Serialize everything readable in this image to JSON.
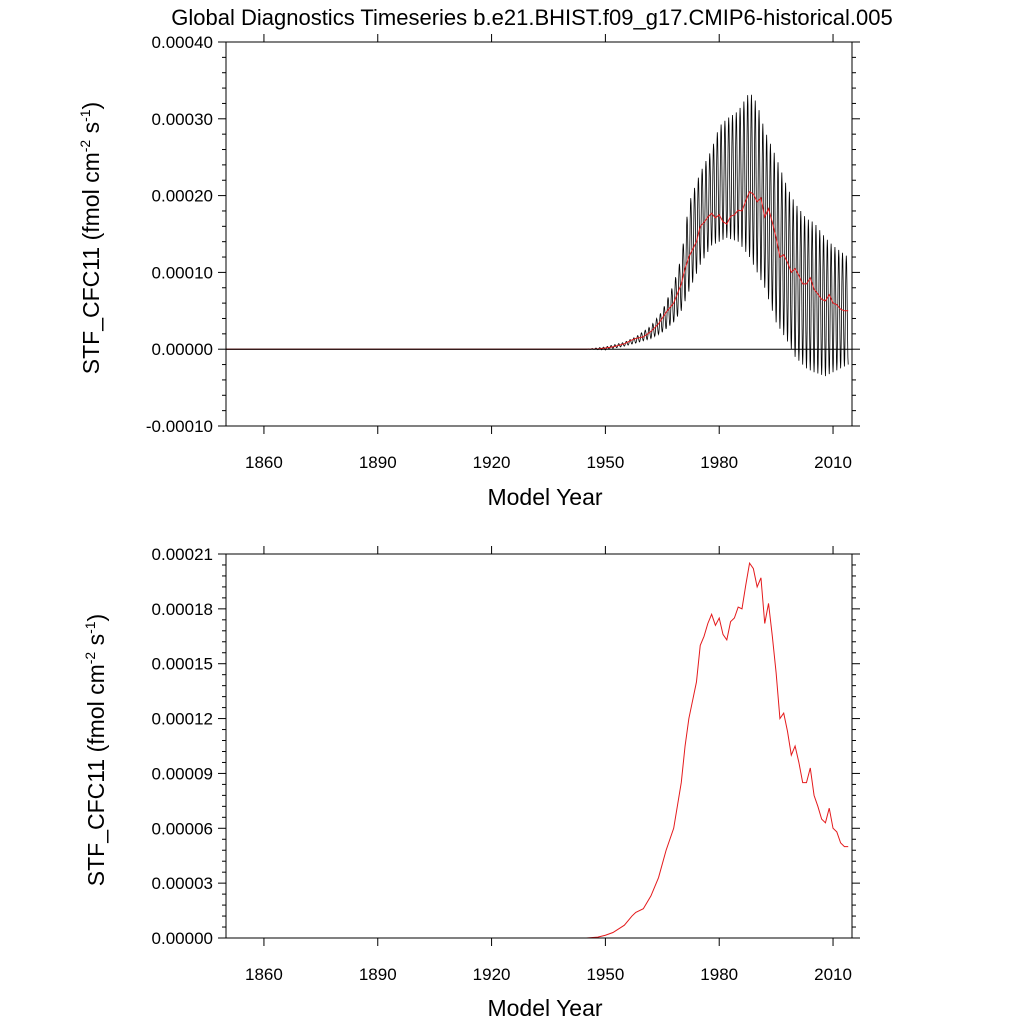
{
  "title": "Global Diagnostics Timeseries b.e21.BHIST.f09_g17.CMIP6-historical.005",
  "colors": {
    "monthly": "#000000",
    "annual": "#e41a1c",
    "zero_line": "#000000"
  },
  "chart_data": [
    {
      "type": "line",
      "xlabel": "Model Year",
      "ylabel": "STF_CFC11 (fmol cm",
      "ylabel_sup1": "-2",
      "ylabel_mid": " s",
      "ylabel_sup2": "-1",
      "ylabel_end": ")",
      "xlim": [
        1850,
        2015
      ],
      "ylim": [
        -0.0001,
        0.0004
      ],
      "x_ticks": [
        1860,
        1890,
        1920,
        1950,
        1980,
        2010
      ],
      "y_ticks": [
        "-0.00010",
        "0.00000",
        "0.00010",
        "0.00020",
        "0.00030",
        "0.00040"
      ],
      "zero_line": true,
      "series": [
        {
          "kind": "monthly",
          "x": [
            1850,
            1945,
            1950,
            1955,
            1958,
            1960,
            1962,
            1965,
            1968,
            1970,
            1972,
            1975,
            1978,
            1980,
            1982,
            1985,
            1988,
            1990,
            1992,
            1995,
            1998,
            2000,
            2003,
            2005,
            2008,
            2010,
            2014
          ],
          "min": [
            0,
            0,
            -1e-06,
            4e-06,
            8e-06,
            1.1e-05,
            1.4e-05,
            2.2e-05,
            3.5e-05,
            5e-05,
            7.5e-05,
            0.00011,
            0.000135,
            0.00014,
            0.000145,
            0.00014,
            0.00012,
            0.0001,
            8e-05,
            3.5e-05,
            1e-05,
            -1e-05,
            -2.5e-05,
            -3e-05,
            -3.5e-05,
            -3e-05,
            -2e-05
          ],
          "max": [
            0,
            0,
            3e-06,
            9e-06,
            1.6e-05,
            2.3e-05,
            3e-05,
            5e-05,
            8.5e-05,
            0.00012,
            0.00019,
            0.00023,
            0.00026,
            0.00029,
            0.0003,
            0.00031,
            0.000335,
            0.00032,
            0.000285,
            0.00025,
            0.00021,
            0.00019,
            0.00017,
            0.000165,
            0.000145,
            0.000135,
            0.00012
          ]
        },
        {
          "kind": "annual",
          "x": [
            1850,
            1945,
            1948,
            1950,
            1952,
            1955,
            1957,
            1958,
            1960,
            1962,
            1964,
            1966,
            1968,
            1970,
            1971,
            1972,
            1973,
            1974,
            1975,
            1976,
            1977,
            1978,
            1979,
            1980,
            1981,
            1982,
            1983,
            1984,
            1985,
            1986,
            1987,
            1988,
            1989,
            1990,
            1991,
            1992,
            1993,
            1994,
            1995,
            1996,
            1997,
            1998,
            1999,
            2000,
            2001,
            2002,
            2003,
            2004,
            2005,
            2006,
            2007,
            2008,
            2009,
            2010,
            2011,
            2012,
            2013,
            2014
          ],
          "y": [
            0,
            0,
            5e-07,
            1.5e-06,
            3e-06,
            7e-06,
            1.2e-05,
            1.4e-05,
            1.6e-05,
            2.3e-05,
            3.3e-05,
            4.8e-05,
            6e-05,
            8.5e-05,
            0.000105,
            0.00012,
            0.00013,
            0.00014,
            0.00016,
            0.000165,
            0.000172,
            0.000177,
            0.000171,
            0.000175,
            0.000166,
            0.000163,
            0.000173,
            0.000175,
            0.000181,
            0.00018,
            0.000193,
            0.000205,
            0.000202,
            0.000192,
            0.000197,
            0.000172,
            0.000183,
            0.000165,
            0.000145,
            0.00012,
            0.000123,
            0.000113,
            0.0001,
            0.000105,
            9.6e-05,
            8.5e-05,
            8.5e-05,
            9.3e-05,
            7.8e-05,
            7.2e-05,
            6.5e-05,
            6.3e-05,
            7.1e-05,
            6e-05,
            5.8e-05,
            5.2e-05,
            5e-05,
            5e-05
          ]
        }
      ]
    },
    {
      "type": "line",
      "xlabel": "Model Year",
      "ylabel": "STF_CFC11 (fmol cm",
      "ylabel_sup1": "-2",
      "ylabel_mid": " s",
      "ylabel_sup2": "-1",
      "ylabel_end": ")",
      "xlim": [
        1850,
        2015
      ],
      "ylim": [
        0,
        0.00021
      ],
      "x_ticks": [
        1860,
        1890,
        1920,
        1950,
        1980,
        2010
      ],
      "y_ticks": [
        "0.00000",
        "0.00003",
        "0.00006",
        "0.00009",
        "0.00012",
        "0.00015",
        "0.00018",
        "0.00021"
      ],
      "zero_line": false,
      "series": [
        {
          "kind": "annual",
          "x": [
            1850,
            1945,
            1948,
            1950,
            1952,
            1955,
            1957,
            1958,
            1960,
            1962,
            1964,
            1966,
            1968,
            1970,
            1971,
            1972,
            1973,
            1974,
            1975,
            1976,
            1977,
            1978,
            1979,
            1980,
            1981,
            1982,
            1983,
            1984,
            1985,
            1986,
            1987,
            1988,
            1989,
            1990,
            1991,
            1992,
            1993,
            1994,
            1995,
            1996,
            1997,
            1998,
            1999,
            2000,
            2001,
            2002,
            2003,
            2004,
            2005,
            2006,
            2007,
            2008,
            2009,
            2010,
            2011,
            2012,
            2013,
            2014
          ],
          "y": [
            0,
            0,
            5e-07,
            1.5e-06,
            3e-06,
            7e-06,
            1.2e-05,
            1.4e-05,
            1.6e-05,
            2.3e-05,
            3.3e-05,
            4.8e-05,
            6e-05,
            8.5e-05,
            0.000105,
            0.00012,
            0.00013,
            0.00014,
            0.00016,
            0.000165,
            0.000172,
            0.000177,
            0.000171,
            0.000175,
            0.000166,
            0.000163,
            0.000173,
            0.000175,
            0.000181,
            0.00018,
            0.000193,
            0.000205,
            0.000202,
            0.000192,
            0.000197,
            0.000172,
            0.000183,
            0.000165,
            0.000145,
            0.00012,
            0.000123,
            0.000113,
            0.0001,
            0.000105,
            9.6e-05,
            8.5e-05,
            8.5e-05,
            9.3e-05,
            7.8e-05,
            7.2e-05,
            6.5e-05,
            6.3e-05,
            7.1e-05,
            6e-05,
            5.8e-05,
            5.2e-05,
            5e-05,
            5e-05
          ]
        }
      ]
    }
  ]
}
